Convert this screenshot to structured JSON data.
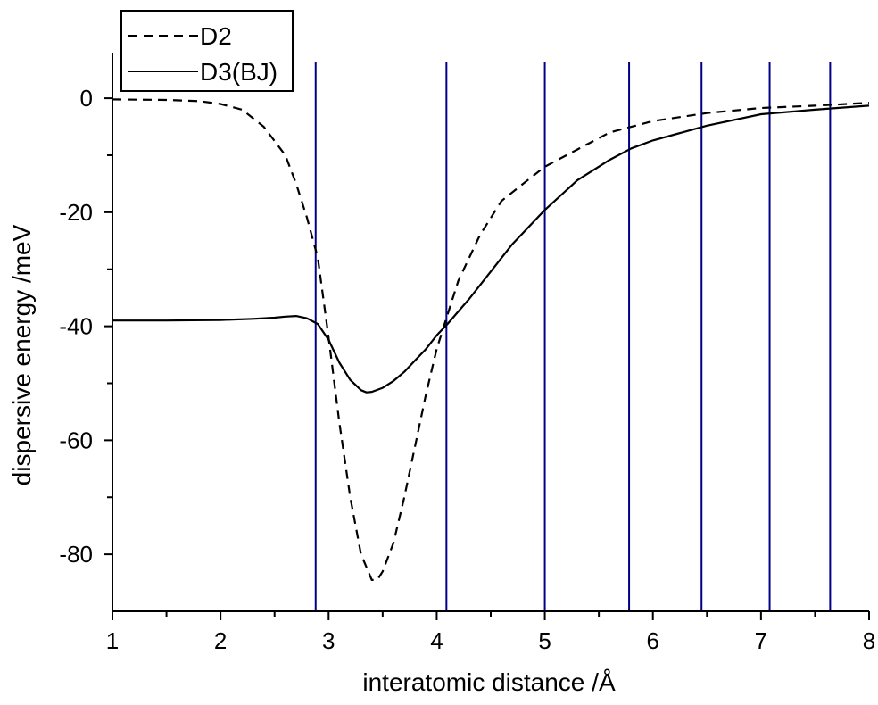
{
  "chart_data": {
    "type": "line",
    "title": "",
    "xlabel": "interatomic distance /Å",
    "ylabel": "dispersive energy /meV",
    "xlim": [
      1,
      8
    ],
    "ylim": [
      -90,
      8
    ],
    "x_ticks": [
      1,
      2,
      3,
      4,
      5,
      6,
      7,
      8
    ],
    "x_tick_labels": [
      "1",
      "2",
      "3",
      "4",
      "5",
      "6",
      "7",
      "8"
    ],
    "y_ticks": [
      0,
      -20,
      -40,
      -60,
      -80
    ],
    "y_tick_labels": [
      "0",
      "-20",
      "-40",
      "-60",
      "-80"
    ],
    "grid": false,
    "legend": "top-left",
    "series": [
      {
        "name": "D2",
        "line_style": "dashed",
        "color": "#000000",
        "x": [
          1.0,
          1.5,
          1.8,
          2.0,
          2.2,
          2.4,
          2.6,
          2.7,
          2.8,
          2.9,
          3.0,
          3.1,
          3.2,
          3.3,
          3.4,
          3.45,
          3.5,
          3.6,
          3.7,
          3.8,
          3.9,
          4.0,
          4.1,
          4.2,
          4.4,
          4.6,
          4.8,
          5.0,
          5.3,
          5.6,
          6.0,
          6.5,
          7.0,
          7.5,
          8.0
        ],
        "y": [
          -0.2,
          -0.3,
          -0.5,
          -1,
          -2,
          -5,
          -10,
          -15,
          -21,
          -28,
          -42,
          -57,
          -70,
          -80,
          -84.5,
          -84.5,
          -83,
          -78,
          -70,
          -61,
          -52,
          -44,
          -38,
          -32,
          -24,
          -18,
          -15,
          -12,
          -9,
          -6,
          -4,
          -2.6,
          -1.7,
          -1.3,
          -0.8
        ]
      },
      {
        "name": "D3(BJ)",
        "line_style": "solid",
        "color": "#000000",
        "x": [
          1.0,
          1.5,
          2.0,
          2.3,
          2.5,
          2.6,
          2.7,
          2.8,
          2.9,
          3.0,
          3.1,
          3.2,
          3.3,
          3.35,
          3.4,
          3.5,
          3.6,
          3.7,
          3.8,
          3.9,
          4.0,
          4.1,
          4.3,
          4.5,
          4.7,
          5.0,
          5.3,
          5.6,
          5.8,
          6.0,
          6.5,
          7.0,
          7.5,
          8.0
        ],
        "y": [
          -39,
          -39,
          -38.9,
          -38.7,
          -38.5,
          -38.3,
          -38.2,
          -38.6,
          -39.6,
          -42.4,
          -46.4,
          -49.4,
          -51.2,
          -51.6,
          -51.5,
          -50.8,
          -49.6,
          -48,
          -46,
          -44,
          -41.6,
          -39.6,
          -35.2,
          -30.4,
          -25.6,
          -19.6,
          -14.4,
          -10.8,
          -8.8,
          -7.4,
          -4.8,
          -2.8,
          -2,
          -1.3
        ]
      }
    ],
    "vertical_lines": {
      "color": "#00008B",
      "x": [
        2.88,
        4.09,
        5.0,
        5.78,
        6.45,
        7.08,
        7.64
      ]
    }
  }
}
